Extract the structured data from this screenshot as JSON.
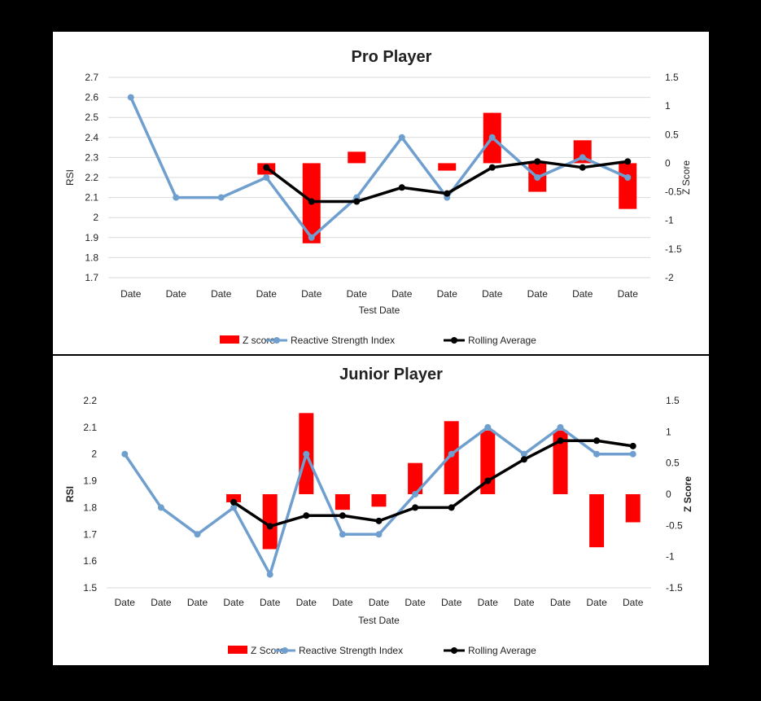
{
  "charts": [
    {
      "id": "pro",
      "title": "Pro Player",
      "xlabel": "Test Date",
      "ylabel": "RSI",
      "y2label": "Z Score",
      "legend": {
        "z": "Z score",
        "rsi": "Reactive Strength Index",
        "avg": "Rolling Average"
      },
      "colors": {
        "bar": "#ff0000",
        "rsi": "#6e9fce",
        "avg": "#000000"
      }
    },
    {
      "id": "jr",
      "title": "Junior Player",
      "xlabel": "Test Date",
      "ylabel": "RSI",
      "y2label": "Z Score",
      "legend": {
        "z": "Z Score",
        "rsi": "Reactive Strength Index",
        "avg": "Rolling Average"
      },
      "colors": {
        "bar": "#ff0000",
        "rsi": "#6e9fce",
        "avg": "#000000"
      }
    }
  ],
  "chart_data": [
    {
      "type": "bar+line",
      "title": "Pro Player",
      "xlabel": "Test Date",
      "ylabel": "RSI",
      "y2label": "Z Score",
      "categories": [
        "Date",
        "Date",
        "Date",
        "Date",
        "Date",
        "Date",
        "Date",
        "Date",
        "Date",
        "Date",
        "Date",
        "Date"
      ],
      "ylim": [
        1.7,
        2.7
      ],
      "yticks": [
        "1.7",
        "1.8",
        "1.9",
        "2",
        "2.1",
        "2.2",
        "2.3",
        "2.4",
        "2.5",
        "2.6",
        "2.7"
      ],
      "y2lim": [
        -2,
        1.5
      ],
      "y2ticks": [
        "-2",
        "-1.5",
        "-1",
        "-0.5",
        "0",
        "0.5",
        "1",
        "1.5"
      ],
      "grid": true,
      "legend_position": "bottom",
      "series": [
        {
          "name": "Z score",
          "type": "bar",
          "axis": "right",
          "values": [
            null,
            null,
            null,
            -0.2,
            -1.4,
            0.2,
            null,
            -0.13,
            0.88,
            -0.5,
            0.4,
            -0.8
          ]
        },
        {
          "name": "Reactive Strength Index",
          "type": "line",
          "axis": "left",
          "values": [
            2.6,
            2.1,
            2.1,
            2.2,
            1.9,
            2.1,
            2.4,
            2.1,
            2.4,
            2.2,
            2.3,
            2.2
          ]
        },
        {
          "name": "Rolling Average",
          "type": "line",
          "axis": "left",
          "values": [
            null,
            null,
            null,
            2.25,
            2.08,
            2.08,
            2.15,
            2.12,
            2.25,
            2.28,
            2.25,
            2.28
          ]
        }
      ]
    },
    {
      "type": "bar+line",
      "title": "Junior Player",
      "xlabel": "Test Date",
      "ylabel": "RSI",
      "y2label": "Z Score",
      "categories": [
        "Date",
        "Date",
        "Date",
        "Date",
        "Date",
        "Date",
        "Date",
        "Date",
        "Date",
        "Date",
        "Date",
        "Date",
        "Date",
        "Date",
        "Date"
      ],
      "ylim": [
        1.5,
        2.2
      ],
      "yticks": [
        "1.5",
        "1.6",
        "1.7",
        "1.8",
        "1.9",
        "2",
        "2.1",
        "2.2"
      ],
      "y2lim": [
        -1.5,
        1.5
      ],
      "y2ticks": [
        "-1.5",
        "-1",
        "-0.5",
        "0",
        "0.5",
        "1",
        "1.5"
      ],
      "grid": false,
      "legend_position": "bottom",
      "series": [
        {
          "name": "Z Score",
          "type": "bar",
          "axis": "right",
          "values": [
            null,
            null,
            null,
            -0.13,
            -0.88,
            1.3,
            -0.25,
            -0.2,
            0.5,
            1.17,
            1.02,
            null,
            1.02,
            -0.85,
            -0.45
          ]
        },
        {
          "name": "Reactive Strength Index",
          "type": "line",
          "axis": "left",
          "values": [
            2.0,
            1.8,
            1.7,
            1.8,
            1.55,
            2.0,
            1.7,
            1.7,
            1.85,
            2.0,
            2.1,
            2.0,
            2.1,
            2.0,
            2.0
          ]
        },
        {
          "name": "Rolling Average",
          "type": "line",
          "axis": "left",
          "values": [
            null,
            null,
            null,
            1.82,
            1.73,
            1.77,
            1.77,
            1.75,
            1.8,
            1.8,
            1.9,
            1.98,
            2.05,
            2.05,
            2.03
          ]
        }
      ]
    }
  ]
}
